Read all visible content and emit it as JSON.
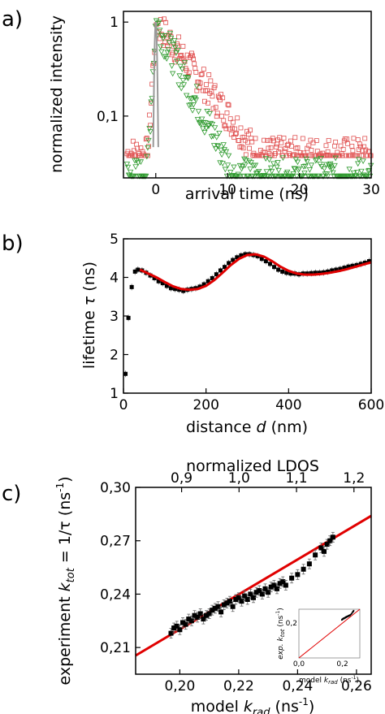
{
  "chart_data": [
    {
      "panel": "a)",
      "type": "scatter",
      "xlabel": "arrival time (ns)",
      "ylabel": "normalized intensity",
      "yscale": "log",
      "xlim": [
        -4.5,
        30
      ],
      "ylim": [
        0.022,
        1.3
      ],
      "xticks": [
        {
          "v": 0,
          "t": "0"
        },
        {
          "v": 10,
          "t": "10"
        },
        {
          "v": 20,
          "t": "20"
        },
        {
          "v": 30,
          "t": "30"
        }
      ],
      "yticks": [
        {
          "v": 1,
          "t": "1"
        },
        {
          "v": 0.1,
          "t": "0,1"
        }
      ],
      "series": [
        {
          "marker": "square",
          "color": "#e05050",
          "noise_floor": 0.04,
          "peak": 0.0,
          "decay_tau": 4.4
        },
        {
          "marker": "triangle",
          "color": "#2e9a2e",
          "noise_floor": 0.023,
          "peak": 0.0,
          "decay_tau": 2.9
        },
        {
          "marker": "line",
          "color": "#000000",
          "fit_tau": [
            4.4,
            2.9
          ]
        }
      ],
      "grid": false
    },
    {
      "panel": "b)",
      "type": "scatter",
      "xlabel": "distance d (nm)",
      "ylabel": "lifetime τ (ns)",
      "xlim": [
        0,
        600
      ],
      "ylim": [
        1,
        5
      ],
      "xticks": [
        {
          "v": 0,
          "t": "0"
        },
        {
          "v": 200,
          "t": "200"
        },
        {
          "v": 400,
          "t": "400"
        },
        {
          "v": 600,
          "t": "600"
        }
      ],
      "yticks": [
        {
          "v": 1,
          "t": "1"
        },
        {
          "v": 2,
          "t": "2"
        },
        {
          "v": 3,
          "t": "3"
        },
        {
          "v": 4,
          "t": "4"
        },
        {
          "v": 5,
          "t": "5"
        }
      ],
      "series": [
        {
          "name": "",
          "marker": "square",
          "color": "#000000",
          "x": [
            5,
            12,
            20,
            28,
            35,
            45,
            55,
            65,
            75,
            85,
            95,
            105,
            115,
            125,
            135,
            145,
            155,
            165,
            175,
            185,
            195,
            205,
            215,
            225,
            235,
            245,
            255,
            265,
            275,
            285,
            295,
            305,
            315,
            325,
            335,
            345,
            355,
            365,
            375,
            385,
            395,
            405,
            415,
            425,
            435,
            445,
            455,
            465,
            475,
            485,
            495,
            505,
            515,
            525,
            535,
            545,
            555,
            565,
            575,
            585,
            595
          ],
          "y": [
            1.5,
            2.95,
            3.75,
            4.15,
            4.2,
            4.18,
            4.12,
            4.05,
            3.98,
            3.9,
            3.85,
            3.78,
            3.72,
            3.7,
            3.68,
            3.65,
            3.68,
            3.7,
            3.72,
            3.76,
            3.82,
            3.9,
            3.98,
            4.08,
            4.18,
            4.27,
            4.37,
            4.45,
            4.52,
            4.57,
            4.6,
            4.6,
            4.58,
            4.55,
            4.48,
            4.42,
            4.35,
            4.27,
            4.2,
            4.15,
            4.12,
            4.1,
            4.1,
            4.08,
            4.1,
            4.1,
            4.11,
            4.12,
            4.12,
            4.13,
            4.15,
            4.18,
            4.2,
            4.22,
            4.25,
            4.28,
            4.3,
            4.32,
            4.35,
            4.38,
            4.42
          ]
        },
        {
          "name": "",
          "marker": "line",
          "color": "#e00000",
          "x": [
            40,
            60,
            80,
            100,
            120,
            140,
            160,
            180,
            200,
            220,
            240,
            260,
            280,
            300,
            320,
            340,
            360,
            380,
            400,
            420,
            440,
            460,
            480,
            500,
            520,
            540,
            560,
            580,
            600
          ],
          "y": [
            4.2,
            4.1,
            4.0,
            3.88,
            3.77,
            3.7,
            3.68,
            3.7,
            3.78,
            3.93,
            4.12,
            4.32,
            4.48,
            4.58,
            4.6,
            4.54,
            4.42,
            4.28,
            4.17,
            4.1,
            4.07,
            4.07,
            4.09,
            4.12,
            4.16,
            4.21,
            4.27,
            4.33,
            4.39
          ]
        }
      ],
      "grid": false
    },
    {
      "panel": "c)",
      "type": "scatter",
      "xlabel_prefix": "model ",
      "xlabel_k": "k",
      "xlabel_sub": "rad",
      "xlabel_unit": " (ns",
      "xlabel_exp": "-1",
      "xlabel_close": ")",
      "ylabel_prefix": "experiment ",
      "ylabel_k": "k",
      "ylabel_sub": "tot",
      "ylabel_mid": " = 1/τ (ns",
      "ylabel_exp": "-1",
      "ylabel_close": ")",
      "top_xlabel": "normalized LDOS",
      "xlim": [
        0.185,
        0.265
      ],
      "ylim": [
        0.195,
        0.3
      ],
      "xticks": [
        {
          "v": 0.2,
          "t": "0,20"
        },
        {
          "v": 0.22,
          "t": "0,22"
        },
        {
          "v": 0.24,
          "t": "0,24"
        },
        {
          "v": 0.26,
          "t": "0,26"
        }
      ],
      "yticks": [
        {
          "v": 0.21,
          "t": "0,21"
        },
        {
          "v": 0.24,
          "t": "0,24"
        },
        {
          "v": 0.27,
          "t": "0,27"
        },
        {
          "v": 0.3,
          "t": "0,30"
        }
      ],
      "top_xticks": [
        {
          "v": 0.9,
          "t": "0,9"
        },
        {
          "v": 1.0,
          "t": "1,0"
        },
        {
          "v": 1.1,
          "t": "1,1"
        },
        {
          "v": 1.2,
          "t": "1,2"
        }
      ],
      "top_xlim": [
        0.82,
        1.23
      ],
      "series": [
        {
          "name": "",
          "marker": "square",
          "color": "#000000",
          "x": [
            0.197,
            0.198,
            0.199,
            0.2,
            0.201,
            0.202,
            0.203,
            0.204,
            0.205,
            0.206,
            0.207,
            0.208,
            0.209,
            0.21,
            0.211,
            0.212,
            0.213,
            0.214,
            0.215,
            0.216,
            0.217,
            0.218,
            0.219,
            0.22,
            0.221,
            0.222,
            0.223,
            0.224,
            0.225,
            0.226,
            0.227,
            0.228,
            0.229,
            0.23,
            0.231,
            0.232,
            0.233,
            0.234,
            0.235,
            0.236,
            0.238,
            0.24,
            0.242,
            0.244,
            0.246,
            0.248,
            0.249,
            0.25,
            0.251,
            0.252
          ],
          "y": [
            0.218,
            0.221,
            0.222,
            0.22,
            0.224,
            0.223,
            0.226,
            0.225,
            0.228,
            0.227,
            0.229,
            0.226,
            0.228,
            0.229,
            0.231,
            0.232,
            0.233,
            0.23,
            0.234,
            0.235,
            0.236,
            0.233,
            0.237,
            0.238,
            0.236,
            0.239,
            0.237,
            0.24,
            0.238,
            0.241,
            0.242,
            0.24,
            0.243,
            0.241,
            0.244,
            0.245,
            0.243,
            0.246,
            0.247,
            0.245,
            0.249,
            0.251,
            0.254,
            0.257,
            0.262,
            0.266,
            0.264,
            0.268,
            0.27,
            0.272
          ]
        },
        {
          "name": "",
          "marker": "line",
          "color": "#e00000",
          "x": [
            0.185,
            0.265
          ],
          "y": [
            0.2055,
            0.284
          ]
        }
      ],
      "inset": {
        "xlabel_prefix": "model ",
        "xlabel_k": "k",
        "xlabel_sub": "rad",
        "xlabel_unit": " (ns",
        "xlabel_exp": "-1",
        "xlabel_close": ")",
        "ylabel_prefix": "exp. ",
        "ylabel_k": "k",
        "ylabel_sub": "tot",
        "ylabel_unit": " (ns",
        "ylabel_exp": "-1",
        "ylabel_close": ")",
        "xticks": [
          {
            "v": 0,
            "t": "0,0"
          },
          {
            "v": 0.2,
            "t": "0,2"
          }
        ],
        "yticks": [
          {
            "v": 0.2,
            "t": "0,2"
          }
        ],
        "xlim": [
          0,
          0.28
        ],
        "ylim": [
          0,
          0.28
        ]
      },
      "grid": false
    }
  ]
}
